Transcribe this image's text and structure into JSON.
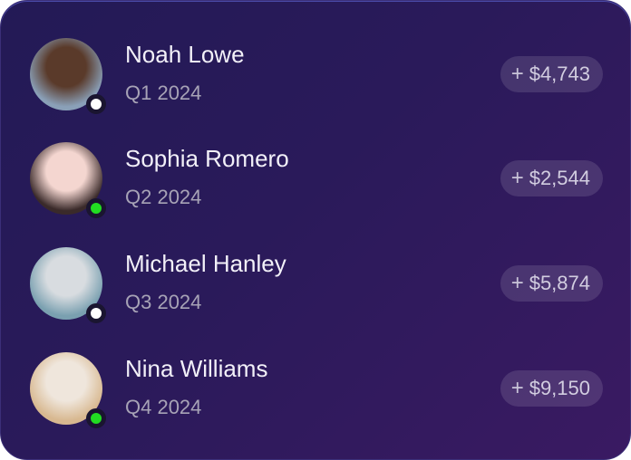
{
  "items": [
    {
      "name": "Noah Lowe",
      "period": "Q1 2024",
      "amount": "$4,743",
      "status_color": "#ffffff",
      "avatar_bg": [
        "#5a3a2a",
        "#8aa0b8"
      ]
    },
    {
      "name": "Sophia Romero",
      "period": "Q2 2024",
      "amount": "$2,544",
      "status_color": "#22dd22",
      "avatar_bg": [
        "#f4d6d0",
        "#3a2a2a"
      ]
    },
    {
      "name": "Michael Hanley",
      "period": "Q3 2024",
      "amount": "$5,874",
      "status_color": "#ffffff",
      "avatar_bg": [
        "#d8dce0",
        "#7aa0b0"
      ]
    },
    {
      "name": "Nina Williams",
      "period": "Q4 2024",
      "amount": "$9,150",
      "status_color": "#22dd22",
      "avatar_bg": [
        "#efe6dc",
        "#d8b890"
      ]
    }
  ],
  "plus_symbol": "+"
}
